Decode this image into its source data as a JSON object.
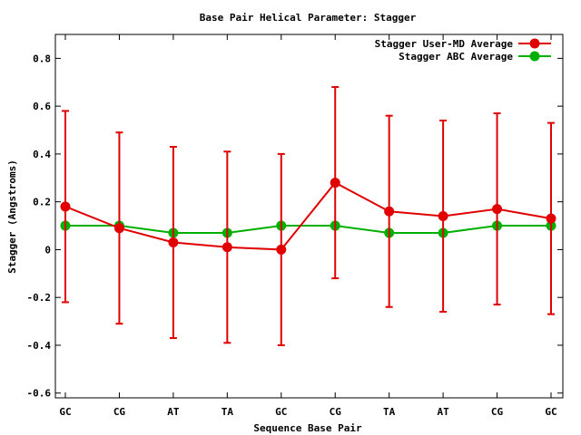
{
  "chart_data": {
    "type": "line",
    "title": "Base Pair Helical Parameter: Stagger",
    "xlabel": "Sequence Base Pair",
    "ylabel": "Stagger (Angstroms)",
    "categories": [
      "GC",
      "CG",
      "AT",
      "TA",
      "GC",
      "CG",
      "TA",
      "AT",
      "CG",
      "GC"
    ],
    "ylim": [
      -0.62,
      0.9
    ],
    "yticks": [
      -0.6,
      -0.4,
      -0.2,
      0,
      0.2,
      0.4,
      0.6,
      0.8
    ],
    "ytick_labels": [
      "-0.6",
      "-0.4",
      "-0.2",
      "0",
      "0.2",
      "0.4",
      "0.6",
      "0.8"
    ],
    "grid": false,
    "legend": "top-right",
    "series": [
      {
        "name": "Stagger User-MD Average",
        "color": "#e00000",
        "values": [
          0.18,
          0.09,
          0.03,
          0.01,
          0.0,
          0.28,
          0.16,
          0.14,
          0.17,
          0.13
        ],
        "error": [
          0.4,
          0.4,
          0.4,
          0.4,
          0.4,
          0.4,
          0.4,
          0.4,
          0.4,
          0.4
        ]
      },
      {
        "name": "Stagger ABC Average",
        "color": "#00b000",
        "values": [
          0.1,
          0.1,
          0.07,
          0.07,
          0.1,
          0.1,
          0.07,
          0.07,
          0.1,
          0.1
        ]
      }
    ]
  }
}
